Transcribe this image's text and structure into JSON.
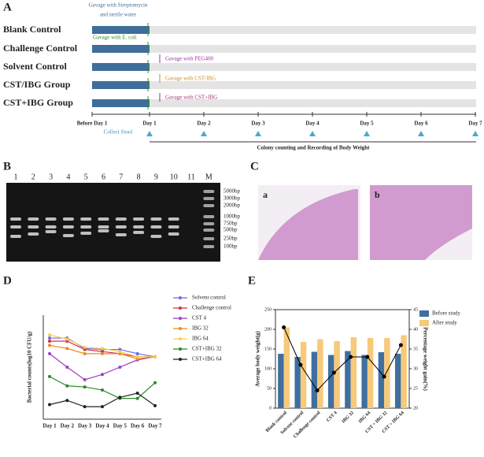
{
  "panel_a": {
    "label": "A",
    "groups": [
      "Blank Control",
      "Challenge Control",
      "Solvent Control",
      "CST/IBG Group",
      "CST+IBG Group"
    ],
    "top_note": [
      "Gavage with Streptomycin",
      "and sterile water"
    ],
    "gavage_notes": [
      "Gavage with E. coli",
      "Gavage with PEG400",
      "Gavage with CST/IBG",
      "Gavage with CST+IBG"
    ],
    "days": [
      "Before Day 1",
      "Day 1",
      "Day 2",
      "Day 3",
      "Day 4",
      "Day 5",
      "Day 6",
      "Day 7"
    ],
    "collect": "Collect Stool",
    "recording": "Colony counting and Recording of Body Weight"
  },
  "panel_b": {
    "label": "B",
    "lanes": [
      "1",
      "2",
      "3",
      "4",
      "5",
      "6",
      "7",
      "8",
      "9",
      "10",
      "11",
      "M"
    ],
    "ladder": [
      "5000bp",
      "3000bp",
      "2000bp",
      "1000bp",
      "750bp",
      "500bp",
      "250bp",
      "100bp"
    ]
  },
  "panel_c": {
    "label": "C",
    "images": [
      "a",
      "b"
    ]
  },
  "chart_data": [
    {
      "type": "line",
      "label": "D",
      "y_label": "Bacterial counts(log10 CFU/g)",
      "categories": [
        "Day 1",
        "Day 2",
        "Day 3",
        "Day 4",
        "Day 5",
        "Day 6",
        "Day 7"
      ],
      "ylim": [
        0,
        10
      ],
      "series": [
        {
          "name": "Solvent control",
          "color": "#6a6af0",
          "values": [
            7.8,
            7.8,
            6.8,
            6.7,
            6.7,
            6.3,
            6.0
          ]
        },
        {
          "name": "Challenge control",
          "color": "#d0304a",
          "values": [
            7.5,
            7.5,
            6.7,
            6.5,
            6.3,
            6.0,
            6.0
          ]
        },
        {
          "name": "CST 4",
          "color": "#9b3fc0",
          "values": [
            6.3,
            5.0,
            3.8,
            4.3,
            5.0,
            5.7,
            6.0
          ]
        },
        {
          "name": "IBG 32",
          "color": "#f08a1c",
          "values": [
            7.1,
            6.8,
            6.3,
            6.3,
            6.3,
            5.8,
            6.0
          ]
        },
        {
          "name": "IBG 64",
          "color": "#f5d04a",
          "values": [
            8.1,
            7.7,
            6.9,
            6.8,
            6.5,
            6.0,
            6.0
          ]
        },
        {
          "name": "CST+IBG 32",
          "color": "#2a8a2a",
          "values": [
            4.1,
            3.2,
            3.1,
            2.8,
            2.0,
            2.0,
            3.5
          ]
        },
        {
          "name": "CST+IBG 64",
          "color": "#222222",
          "values": [
            1.4,
            1.8,
            1.2,
            1.2,
            2.1,
            2.5,
            1.3
          ]
        }
      ]
    },
    {
      "type": "bar",
      "label": "E",
      "y_label": "Average body weight(g)",
      "y2_label": "Percentage weight gain(%)",
      "categories": [
        "Blank control",
        "Solvent control",
        "Challenge control",
        "CST 4",
        "IBG 32",
        "IBG 64",
        "CST + IBG 32",
        "CST + IBG 64"
      ],
      "ylim": [
        0,
        250
      ],
      "yticks": [
        0,
        50,
        100,
        150,
        200,
        250
      ],
      "y2lim": [
        20,
        45
      ],
      "y2ticks": [
        20,
        25,
        30,
        35,
        40,
        45
      ],
      "series": [
        {
          "name": "Before study",
          "color": "#3f6f9f",
          "values": [
            138,
            130,
            143,
            135,
            145,
            135,
            142,
            138
          ]
        },
        {
          "name": "After study",
          "color": "#f7c97a",
          "values": [
            205,
            168,
            175,
            170,
            180,
            178,
            178,
            185
          ]
        }
      ],
      "weight_gain": {
        "color": "#000000",
        "values": [
          40.5,
          31,
          24.5,
          29,
          33,
          33,
          28,
          36
        ]
      }
    }
  ]
}
